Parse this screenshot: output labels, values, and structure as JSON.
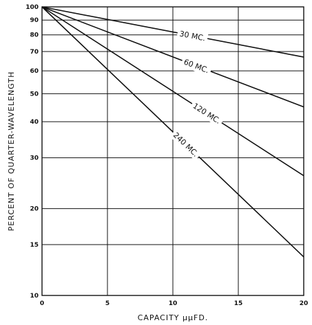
{
  "chart_data": {
    "type": "line",
    "title": "",
    "xlabel": "CAPACITY µµFD.",
    "ylabel": "PERCENT OF QUARTER-WAVELENGTH",
    "xlim": [
      0,
      20
    ],
    "ylim": [
      10,
      100
    ],
    "yscale": "log",
    "grid": true,
    "x_ticks": [
      0,
      5,
      10,
      15,
      20
    ],
    "x_tick_labels": [
      "0",
      "5",
      "10",
      "15",
      "20"
    ],
    "y_ticks": [
      10,
      15,
      20,
      30,
      40,
      50,
      60,
      70,
      80,
      90,
      100
    ],
    "y_tick_labels": [
      "10",
      "15",
      "20",
      "30",
      "40",
      "50",
      "60",
      "70",
      "80",
      "90",
      "100"
    ],
    "series": [
      {
        "name": "30 MC.",
        "x": [
          0,
          20
        ],
        "y": [
          100,
          67
        ]
      },
      {
        "name": "60 MC.",
        "x": [
          0,
          20
        ],
        "y": [
          100,
          45
        ]
      },
      {
        "name": "120 MC.",
        "x": [
          0,
          20
        ],
        "y": [
          100,
          26
        ]
      },
      {
        "name": "240 MC.",
        "x": [
          0,
          20
        ],
        "y": [
          100,
          13.6
        ]
      }
    ]
  }
}
